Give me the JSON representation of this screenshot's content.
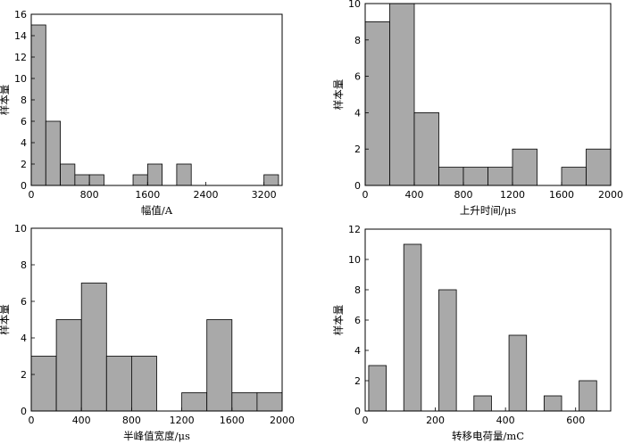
{
  "chart_data": [
    {
      "id": "amplitude",
      "type": "bar",
      "xlabel": "幅值/A",
      "ylabel": "样本量",
      "xlim": [
        0,
        3450
      ],
      "ylim": [
        0,
        16
      ],
      "xticks": [
        0,
        800,
        1600,
        2400,
        3200
      ],
      "yticks": [
        0,
        2,
        4,
        6,
        8,
        10,
        12,
        14,
        16
      ],
      "bins": [
        {
          "x0": 0,
          "x1": 200,
          "value": 15
        },
        {
          "x0": 200,
          "x1": 400,
          "value": 6
        },
        {
          "x0": 400,
          "x1": 600,
          "value": 2
        },
        {
          "x0": 600,
          "x1": 800,
          "value": 1
        },
        {
          "x0": 800,
          "x1": 1000,
          "value": 1
        },
        {
          "x0": 1400,
          "x1": 1600,
          "value": 1
        },
        {
          "x0": 1600,
          "x1": 1800,
          "value": 2
        },
        {
          "x0": 2000,
          "x1": 2200,
          "value": 2
        },
        {
          "x0": 3200,
          "x1": 3400,
          "value": 1
        }
      ]
    },
    {
      "id": "rise-time",
      "type": "bar",
      "xlabel": "上升时间/μs",
      "ylabel": "样本量",
      "xlim": [
        0,
        2000
      ],
      "ylim": [
        0,
        10
      ],
      "xticks": [
        0,
        400,
        800,
        1200,
        1600,
        2000
      ],
      "yticks": [
        0,
        2,
        4,
        6,
        8,
        10
      ],
      "bins": [
        {
          "x0": 0,
          "x1": 200,
          "value": 9
        },
        {
          "x0": 200,
          "x1": 400,
          "value": 10
        },
        {
          "x0": 400,
          "x1": 600,
          "value": 4
        },
        {
          "x0": 600,
          "x1": 800,
          "value": 1
        },
        {
          "x0": 800,
          "x1": 1000,
          "value": 1
        },
        {
          "x0": 1000,
          "x1": 1200,
          "value": 1
        },
        {
          "x0": 1200,
          "x1": 1400,
          "value": 2
        },
        {
          "x0": 1600,
          "x1": 1800,
          "value": 1
        },
        {
          "x0": 1800,
          "x1": 2000,
          "value": 2
        }
      ]
    },
    {
      "id": "half-peak-width",
      "type": "bar",
      "xlabel": "半峰值宽度/μs",
      "ylabel": "样本量",
      "xlim": [
        0,
        2000
      ],
      "ylim": [
        0,
        10
      ],
      "xticks": [
        0,
        400,
        800,
        1200,
        1600,
        2000
      ],
      "yticks": [
        0,
        2,
        4,
        6,
        8,
        10
      ],
      "bins": [
        {
          "x0": 0,
          "x1": 200,
          "value": 3
        },
        {
          "x0": 200,
          "x1": 400,
          "value": 5
        },
        {
          "x0": 400,
          "x1": 600,
          "value": 7
        },
        {
          "x0": 600,
          "x1": 800,
          "value": 3
        },
        {
          "x0": 800,
          "x1": 1000,
          "value": 3
        },
        {
          "x0": 1200,
          "x1": 1400,
          "value": 1
        },
        {
          "x0": 1400,
          "x1": 1600,
          "value": 5
        },
        {
          "x0": 1600,
          "x1": 1800,
          "value": 1
        },
        {
          "x0": 1800,
          "x1": 2000,
          "value": 1
        }
      ]
    },
    {
      "id": "charge-transfer",
      "type": "bar",
      "xlabel": "转移电荷量/mC",
      "ylabel": "样本量",
      "xlim": [
        0,
        700
      ],
      "ylim": [
        0,
        12
      ],
      "xticks": [
        0,
        200,
        400,
        600
      ],
      "yticks": [
        0,
        2,
        4,
        6,
        8,
        10,
        12
      ],
      "bins": [
        {
          "x0": 10,
          "x1": 60,
          "value": 3
        },
        {
          "x0": 110,
          "x1": 160,
          "value": 11
        },
        {
          "x0": 210,
          "x1": 260,
          "value": 8
        },
        {
          "x0": 310,
          "x1": 360,
          "value": 1
        },
        {
          "x0": 410,
          "x1": 460,
          "value": 5
        },
        {
          "x0": 510,
          "x1": 560,
          "value": 1
        },
        {
          "x0": 610,
          "x1": 660,
          "value": 2
        }
      ]
    }
  ]
}
